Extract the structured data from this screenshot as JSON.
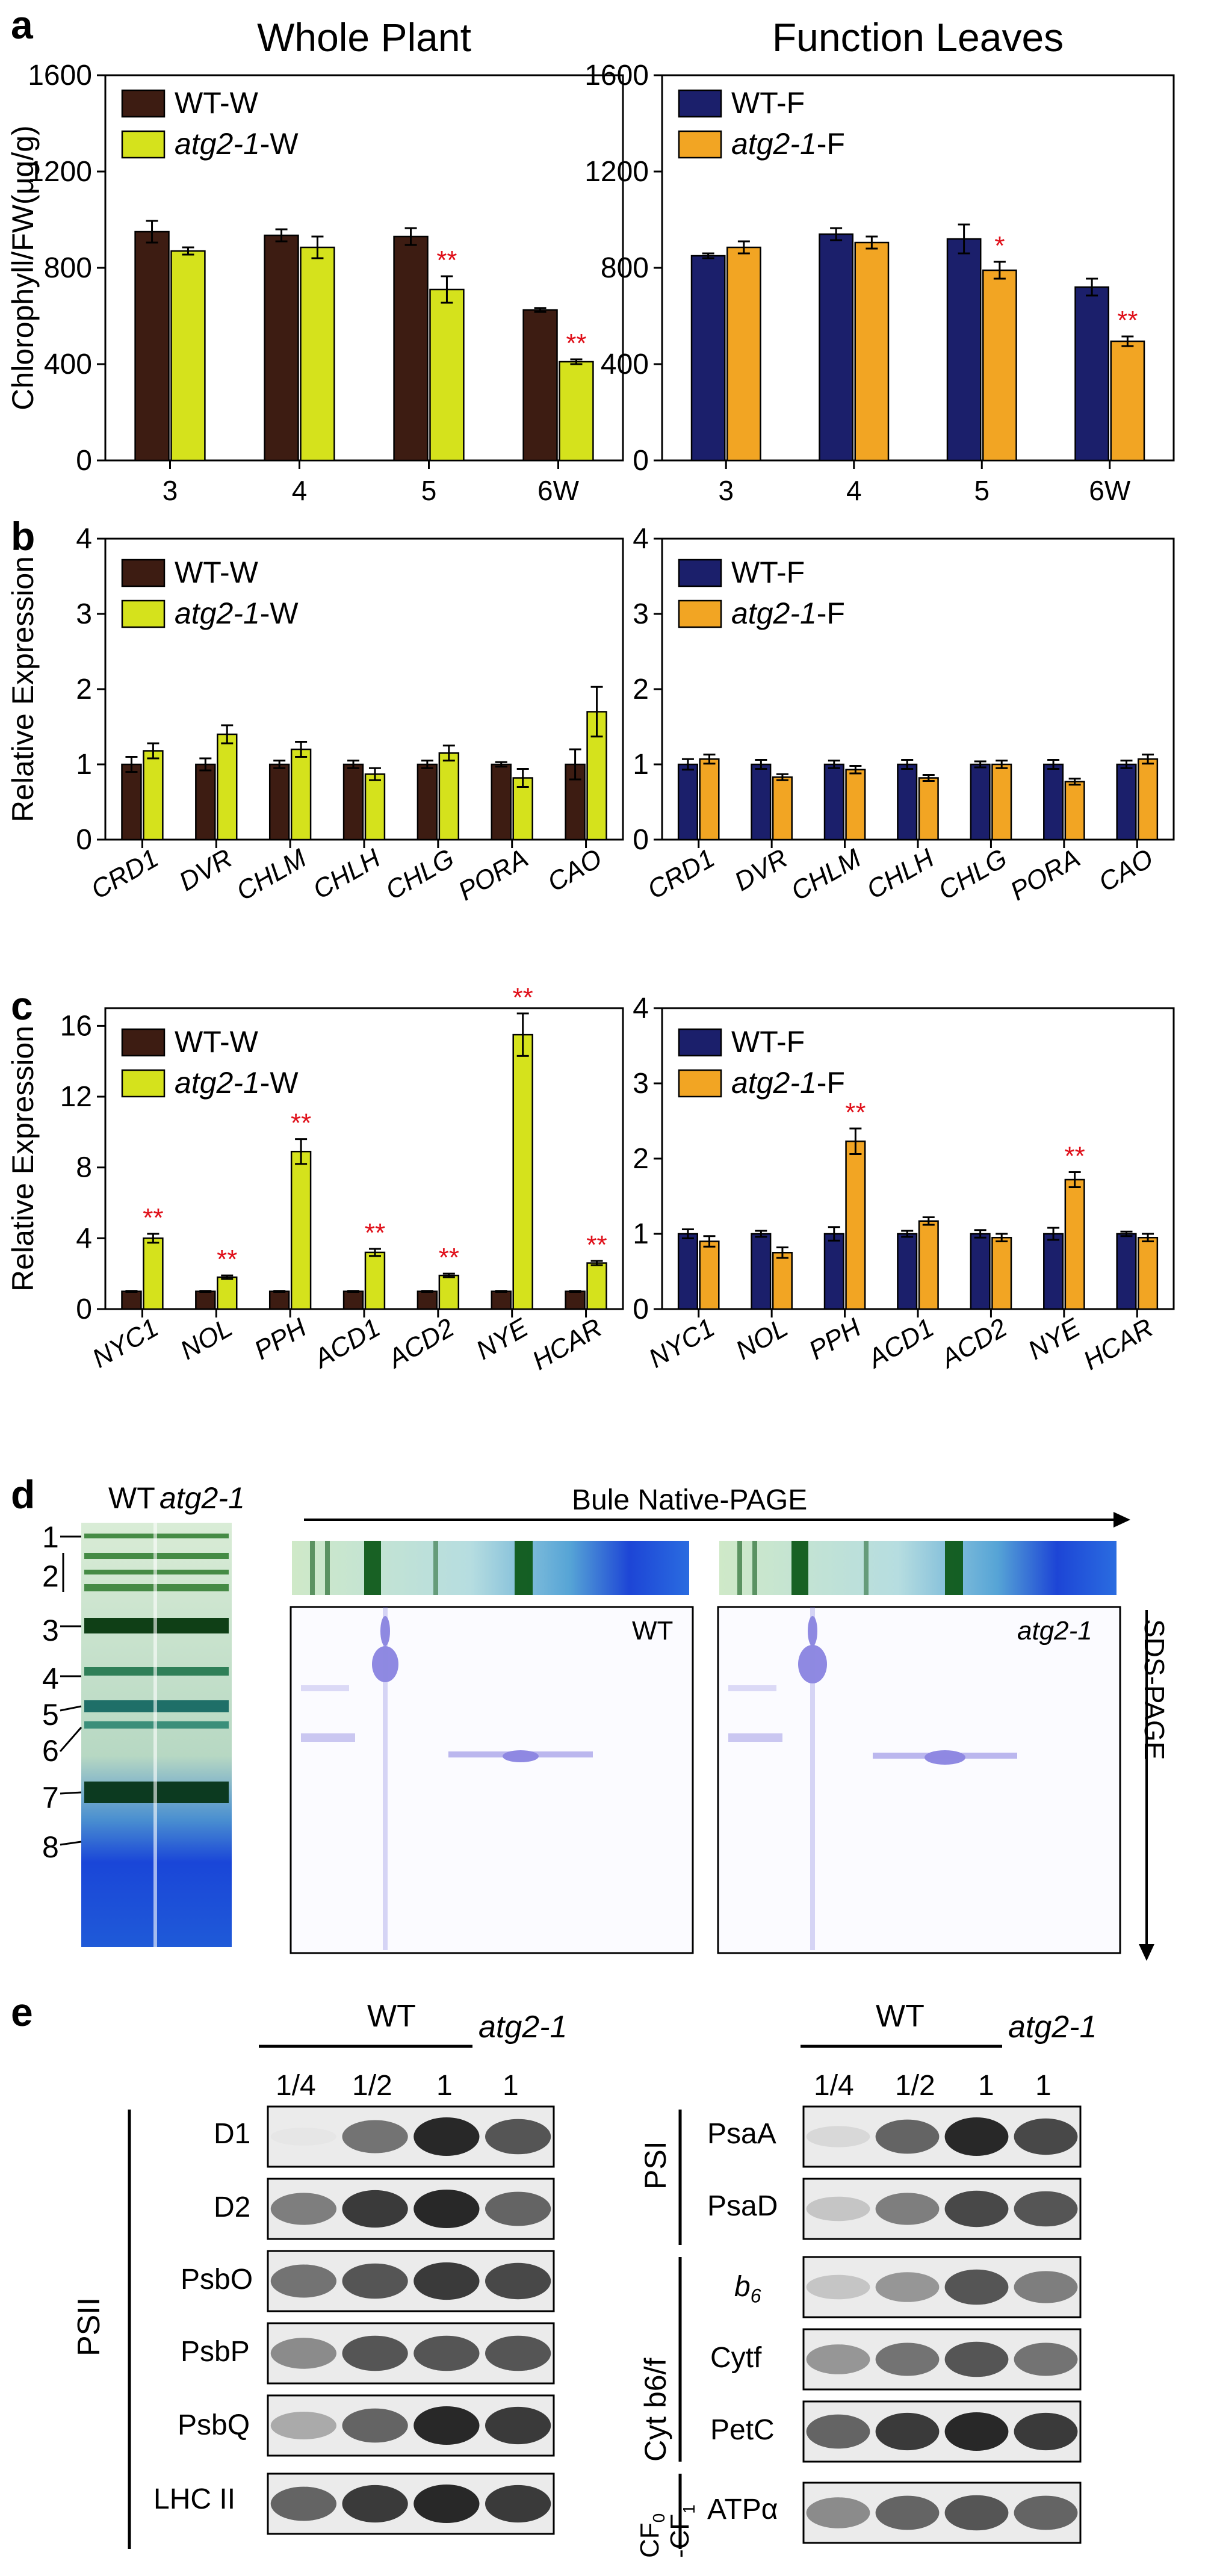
{
  "figure": {
    "panel_labels": [
      "a",
      "b",
      "c",
      "d",
      "e"
    ]
  },
  "colors": {
    "wt_w": "#3d1c12",
    "atg2_w": "#d5e21c",
    "wt_f": "#1b1f6b",
    "atg2_f": "#f2a523",
    "significance": "#e0101a"
  },
  "chart_data": [
    {
      "id": "a-left",
      "type": "bar",
      "title": "Whole Plant",
      "ylabel": "Chlorophyll/FW(μg/g)",
      "ylim": [
        0,
        1600
      ],
      "yticks": [
        0,
        400,
        800,
        1200,
        1600
      ],
      "categories": [
        "3",
        "4",
        "5",
        "6W"
      ],
      "series": [
        {
          "name": "WT-W",
          "name_prefix": "WT-W",
          "italic": "",
          "values": [
            950,
            935,
            930,
            625
          ],
          "errors": [
            45,
            25,
            35,
            8
          ]
        },
        {
          "name": "atg2-1-W",
          "name_prefix": "-W",
          "italic": "atg2-1",
          "values": [
            870,
            885,
            710,
            410
          ],
          "errors": [
            15,
            45,
            55,
            10
          ]
        }
      ],
      "annotations": [
        {
          "series": 1,
          "index": 2,
          "text": "**"
        },
        {
          "series": 1,
          "index": 3,
          "text": "**"
        }
      ]
    },
    {
      "id": "a-right",
      "type": "bar",
      "title": "Function Leaves",
      "ylabel": "",
      "ylim": [
        0,
        1600
      ],
      "yticks": [
        0,
        400,
        800,
        1200,
        1600
      ],
      "categories": [
        "3",
        "4",
        "5",
        "6W"
      ],
      "series": [
        {
          "name": "WT-F",
          "name_prefix": "WT-F",
          "italic": "",
          "values": [
            850,
            940,
            920,
            720
          ],
          "errors": [
            10,
            25,
            60,
            35
          ]
        },
        {
          "name": "atg2-1-F",
          "name_prefix": "-F",
          "italic": "atg2-1",
          "values": [
            885,
            905,
            790,
            495
          ],
          "errors": [
            25,
            25,
            35,
            20
          ]
        }
      ],
      "annotations": [
        {
          "series": 1,
          "index": 2,
          "text": "*"
        },
        {
          "series": 1,
          "index": 3,
          "text": "**"
        }
      ]
    },
    {
      "id": "b-left",
      "type": "bar",
      "title": "",
      "ylabel": "Relative Expression",
      "ylim": [
        0,
        4
      ],
      "yticks": [
        0,
        1,
        2,
        3,
        4
      ],
      "categories": [
        "CRD1",
        "DVR",
        "CHLM",
        "CHLH",
        "CHLG",
        "PORA",
        "CAO"
      ],
      "series": [
        {
          "name": "WT-W",
          "name_prefix": "WT-W",
          "italic": "",
          "values": [
            1.0,
            1.0,
            1.0,
            1.0,
            1.0,
            1.0,
            1.0
          ],
          "errors": [
            0.1,
            0.08,
            0.05,
            0.05,
            0.05,
            0.03,
            0.2
          ]
        },
        {
          "name": "atg2-1-W",
          "name_prefix": "-W",
          "italic": "atg2-1",
          "values": [
            1.18,
            1.4,
            1.2,
            0.87,
            1.15,
            0.82,
            1.7
          ],
          "errors": [
            0.1,
            0.12,
            0.1,
            0.08,
            0.1,
            0.12,
            0.33
          ]
        }
      ],
      "annotations": []
    },
    {
      "id": "b-right",
      "type": "bar",
      "title": "",
      "ylabel": "",
      "ylim": [
        0,
        4
      ],
      "yticks": [
        0,
        1,
        2,
        3,
        4
      ],
      "categories": [
        "CRD1",
        "DVR",
        "CHLM",
        "CHLH",
        "CHLG",
        "PORA",
        "CAO"
      ],
      "series": [
        {
          "name": "WT-F",
          "name_prefix": "WT-F",
          "italic": "",
          "values": [
            1.0,
            1.0,
            1.0,
            1.0,
            1.0,
            1.0,
            1.0
          ],
          "errors": [
            0.07,
            0.06,
            0.05,
            0.06,
            0.04,
            0.06,
            0.05
          ]
        },
        {
          "name": "atg2-1-F",
          "name_prefix": "-F",
          "italic": "atg2-1",
          "values": [
            1.07,
            0.83,
            0.93,
            0.82,
            1.0,
            0.77,
            1.07
          ],
          "errors": [
            0.06,
            0.04,
            0.05,
            0.04,
            0.05,
            0.04,
            0.06
          ]
        }
      ],
      "annotations": []
    },
    {
      "id": "c-left",
      "type": "bar",
      "title": "",
      "ylabel": "Relative Expression",
      "ylim": [
        0,
        17
      ],
      "yticks": [
        0,
        4,
        8,
        12,
        16
      ],
      "categories": [
        "NYC1",
        "NOL",
        "PPH",
        "ACD1",
        "ACD2",
        "NYE",
        "HCAR"
      ],
      "series": [
        {
          "name": "WT-W",
          "name_prefix": "WT-W",
          "italic": "",
          "values": [
            1.0,
            1.0,
            1.0,
            1.0,
            1.0,
            1.0,
            1.0
          ],
          "errors": [
            0.03,
            0.03,
            0.03,
            0.03,
            0.03,
            0.03,
            0.03
          ]
        },
        {
          "name": "atg2-1-W",
          "name_prefix": "-W",
          "italic": "atg2-1",
          "values": [
            4.0,
            1.8,
            8.9,
            3.2,
            1.9,
            15.5,
            2.6
          ],
          "errors": [
            0.25,
            0.1,
            0.7,
            0.2,
            0.1,
            1.2,
            0.12
          ]
        }
      ],
      "annotations": [
        {
          "series": 1,
          "index": 0,
          "text": "**"
        },
        {
          "series": 1,
          "index": 1,
          "text": "**"
        },
        {
          "series": 1,
          "index": 2,
          "text": "**"
        },
        {
          "series": 1,
          "index": 3,
          "text": "**"
        },
        {
          "series": 1,
          "index": 4,
          "text": "**"
        },
        {
          "series": 1,
          "index": 5,
          "text": "**"
        },
        {
          "series": 1,
          "index": 6,
          "text": "**"
        }
      ]
    },
    {
      "id": "c-right",
      "type": "bar",
      "title": "",
      "ylabel": "",
      "ylim": [
        0,
        4
      ],
      "yticks": [
        0,
        1,
        2,
        3,
        4
      ],
      "categories": [
        "NYC1",
        "NOL",
        "PPH",
        "ACD1",
        "ACD2",
        "NYE",
        "HCAR"
      ],
      "series": [
        {
          "name": "WT-F",
          "name_prefix": "WT-F",
          "italic": "",
          "values": [
            1.0,
            1.0,
            1.0,
            1.0,
            1.0,
            1.0,
            1.0
          ],
          "errors": [
            0.06,
            0.04,
            0.09,
            0.04,
            0.05,
            0.08,
            0.03
          ]
        },
        {
          "name": "atg2-1-F",
          "name_prefix": "-F",
          "italic": "atg2-1",
          "values": [
            0.9,
            0.75,
            2.23,
            1.17,
            0.95,
            1.72,
            0.95
          ],
          "errors": [
            0.07,
            0.07,
            0.17,
            0.05,
            0.05,
            0.1,
            0.05
          ]
        }
      ],
      "annotations": [
        {
          "series": 1,
          "index": 2,
          "text": "**"
        },
        {
          "series": 1,
          "index": 5,
          "text": "**"
        }
      ]
    }
  ],
  "panel_d": {
    "gel_header_wt": "WT",
    "gel_header_mut": "atg2-1",
    "band_numbers": [
      "1",
      "2",
      "3",
      "4",
      "5",
      "6",
      "7",
      "8"
    ],
    "bn_page_label": "Bule Native-PAGE",
    "sds_page_label": "SDS-PAGE",
    "gel_wt_label": "WT",
    "gel_mut_label": "atg2-1"
  },
  "panel_e": {
    "header_wt": "WT",
    "header_mut": "atg2-1",
    "lanes": [
      "1/4",
      "1/2",
      "1",
      "1"
    ],
    "left_group": "PSII",
    "left_rows": [
      {
        "label": "D1",
        "sub": ""
      },
      {
        "label": "D2",
        "sub": ""
      },
      {
        "label": "PsbO",
        "sub": ""
      },
      {
        "label": "PsbP",
        "sub": ""
      },
      {
        "label": "PsbQ",
        "sub": ""
      },
      {
        "label": "LHC II",
        "sub": ""
      }
    ],
    "right_groups": [
      {
        "label": "PSI",
        "rows": [
          {
            "label": "PsaA",
            "sub": ""
          },
          {
            "label": "PsaD",
            "sub": ""
          }
        ]
      },
      {
        "label": "Cyt b6/f",
        "rows": [
          {
            "label": "b",
            "sub": "6"
          },
          {
            "label": "Cytf",
            "sub": ""
          },
          {
            "label": "PetC",
            "sub": ""
          }
        ]
      },
      {
        "label": "CF0-CF1",
        "rows": [
          {
            "label": "ATPα",
            "sub": ""
          }
        ]
      }
    ],
    "cf_label_top": "CF",
    "cf_sub_top": "0",
    "cf_label_bottom": "-CF",
    "cf_sub_bottom": "1"
  }
}
